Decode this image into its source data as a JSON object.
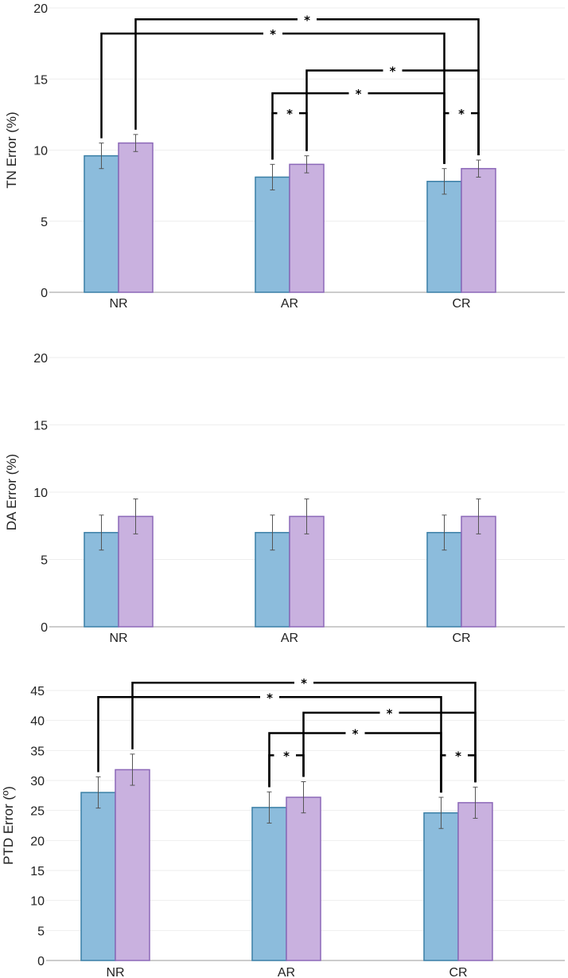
{
  "colors": {
    "series1": "#8cbcdc",
    "series1_edge": "#3a7fa6",
    "series2": "#c9b1df",
    "series2_edge": "#8c68b8",
    "grid": "#eeeeee",
    "axis": "#999999",
    "bracket": "#000000"
  },
  "chart_data": [
    {
      "type": "bar",
      "ylabel": "TN Error (%)",
      "ylim": [
        0,
        20
      ],
      "yticks": [
        "0",
        "5",
        "10",
        "15",
        "20"
      ],
      "yticks_values": [
        0,
        5,
        10,
        15,
        20
      ],
      "categories": [
        "NR",
        "AR",
        "CR"
      ],
      "grid": true,
      "series": [
        {
          "values": [
            9.6,
            8.1,
            7.8
          ],
          "errors": [
            0.9,
            0.9,
            0.9
          ]
        },
        {
          "values": [
            10.5,
            9.0,
            8.7
          ],
          "errors": [
            0.6,
            0.6,
            0.6
          ]
        }
      ],
      "significance": [
        {
          "from": [
            0,
            1
          ],
          "to": [
            2,
            1
          ],
          "label": "*",
          "level": 19.2,
          "style": "solid"
        },
        {
          "from": [
            0,
            0
          ],
          "to": [
            2,
            0
          ],
          "label": "*",
          "level": 18.2,
          "style": "solid"
        },
        {
          "from": [
            1,
            1
          ],
          "to": [
            2,
            1
          ],
          "label": "*",
          "level": 15.6,
          "style": "solid"
        },
        {
          "from": [
            1,
            0
          ],
          "to": [
            2,
            0
          ],
          "label": "*",
          "level": 14.0,
          "style": "solid"
        },
        {
          "from": [
            1,
            0
          ],
          "to": [
            1,
            1
          ],
          "label": "*",
          "level": 12.6,
          "style": "dashed"
        },
        {
          "from": [
            2,
            0
          ],
          "to": [
            2,
            1
          ],
          "label": "*",
          "level": 12.6,
          "style": "dashed"
        }
      ]
    },
    {
      "type": "bar",
      "ylabel": "DA Error (%)",
      "ylim": [
        0,
        20
      ],
      "yticks": [
        "0",
        "5",
        "10",
        "15",
        "20"
      ],
      "yticks_values": [
        0,
        5,
        10,
        15,
        20
      ],
      "categories": [
        "NR",
        "AR",
        "CR"
      ],
      "grid": true,
      "series": [
        {
          "values": [
            7.0,
            7.0,
            7.0
          ],
          "errors": [
            1.3,
            1.3,
            1.3
          ]
        },
        {
          "values": [
            8.2,
            8.2,
            8.2
          ],
          "errors": [
            1.3,
            1.3,
            1.3
          ]
        }
      ],
      "significance": []
    },
    {
      "type": "bar",
      "ylabel": "PTD Error (º)",
      "ylim": [
        0,
        48
      ],
      "yticks": [
        "0",
        "5",
        "10",
        "15",
        "20",
        "25",
        "30",
        "35",
        "40",
        "45"
      ],
      "yticks_values": [
        0,
        5,
        10,
        15,
        20,
        25,
        30,
        35,
        40,
        45
      ],
      "categories": [
        "NR",
        "AR",
        "CR"
      ],
      "grid": true,
      "series": [
        {
          "values": [
            28.0,
            25.5,
            24.6
          ],
          "errors": [
            2.6,
            2.6,
            2.6
          ]
        },
        {
          "values": [
            31.8,
            27.2,
            26.3
          ],
          "errors": [
            2.6,
            2.6,
            2.6
          ]
        }
      ],
      "significance": [
        {
          "from": [
            0,
            1
          ],
          "to": [
            2,
            1
          ],
          "label": "*",
          "level": 46.3,
          "style": "solid"
        },
        {
          "from": [
            0,
            0
          ],
          "to": [
            2,
            0
          ],
          "label": "*",
          "level": 43.9,
          "style": "solid"
        },
        {
          "from": [
            1,
            1
          ],
          "to": [
            2,
            1
          ],
          "label": "*",
          "level": 41.3,
          "style": "solid"
        },
        {
          "from": [
            1,
            0
          ],
          "to": [
            2,
            0
          ],
          "label": "*",
          "level": 37.9,
          "style": "solid"
        },
        {
          "from": [
            1,
            0
          ],
          "to": [
            1,
            1
          ],
          "label": "*",
          "level": 34.2,
          "style": "dashed"
        },
        {
          "from": [
            2,
            0
          ],
          "to": [
            2,
            1
          ],
          "label": "*",
          "level": 34.2,
          "style": "dashed"
        }
      ]
    }
  ]
}
